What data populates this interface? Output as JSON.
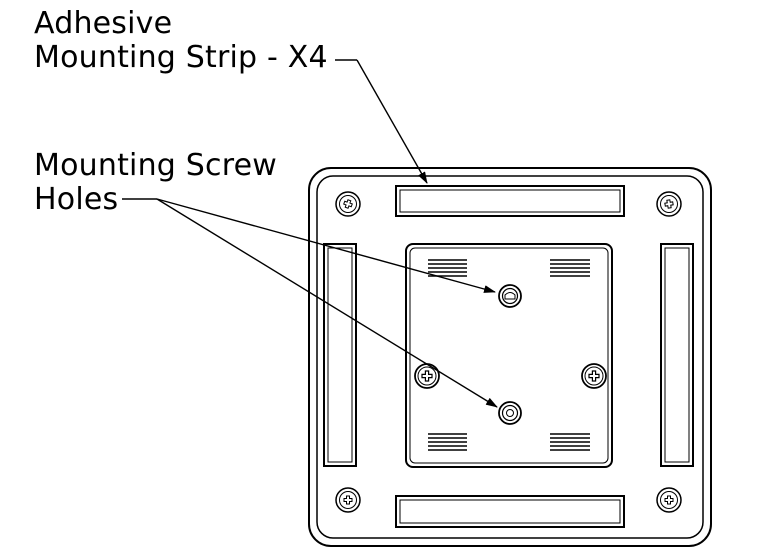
{
  "callouts": {
    "adhesive_line1": "Adhesive",
    "adhesive_line2": "Mounting Strip - X4",
    "screw_line1": "Mounting Screw",
    "screw_line2": "Holes"
  },
  "colors": {
    "line": "#000000",
    "background": "#ffffff"
  }
}
